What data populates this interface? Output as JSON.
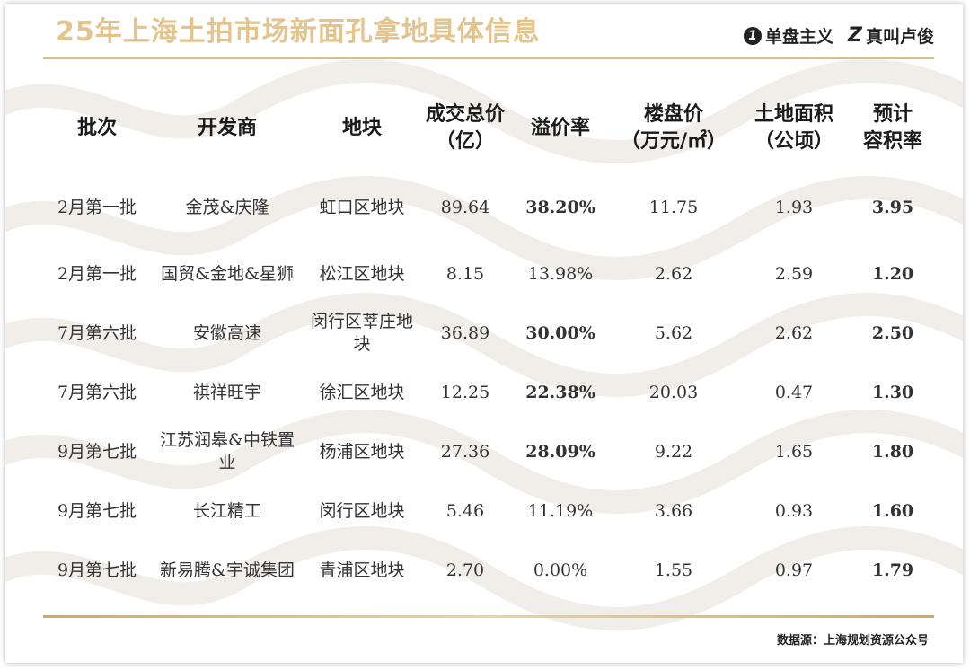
{
  "header": {
    "title": "25年上海土拍市场新面孔拿地具体信息",
    "brand_1": "单盘主义",
    "brand_1_logo": "1",
    "brand_2": "真叫卢俊",
    "brand_2_logo": "Z"
  },
  "table": {
    "columns": [
      {
        "line1": "批次",
        "line2": ""
      },
      {
        "line1": "开发商",
        "line2": ""
      },
      {
        "line1": "地块",
        "line2": ""
      },
      {
        "line1": "成交总价",
        "line2": "（亿）"
      },
      {
        "line1": "溢价率",
        "line2": ""
      },
      {
        "line1": "楼盘价",
        "line2": "（万元/㎡）"
      },
      {
        "line1": "土地面积",
        "line2": "（公顷）"
      },
      {
        "line1": "预计",
        "line2": "容积率"
      }
    ],
    "rows": [
      {
        "batch": "2月第一批",
        "developer": "金茂&庆隆",
        "plot": "虹口区地块",
        "price": "89.64",
        "premium": "38.20%",
        "premium_highlight": true,
        "house_price": "11.75",
        "area": "1.93",
        "far": "3.95",
        "far_color": "black"
      },
      {
        "batch": "2月第一批",
        "developer": "国贸&金地&星狮",
        "plot": "松江区地块",
        "price": "8.15",
        "premium": "13.98%",
        "premium_highlight": false,
        "house_price": "2.62",
        "area": "2.59",
        "far": "1.20",
        "far_color": "red"
      },
      {
        "batch": "7月第六批",
        "developer": "安徽高速",
        "plot": "闵行区莘庄地块",
        "price": "36.89",
        "premium": "30.00%",
        "premium_highlight": true,
        "house_price": "5.62",
        "area": "2.62",
        "far": "2.50",
        "far_color": "red"
      },
      {
        "batch": "7月第六批",
        "developer": "祺祥旺宇",
        "plot": "徐汇区地块",
        "price": "12.25",
        "premium": "22.38%",
        "premium_highlight": true,
        "house_price": "20.03",
        "area": "0.47",
        "far": "1.30",
        "far_color": "red"
      },
      {
        "batch": "9月第七批",
        "developer": "江苏润皋&中铁置业",
        "plot": "杨浦区地块",
        "price": "27.36",
        "premium": "28.09%",
        "premium_highlight": true,
        "house_price": "9.22",
        "area": "1.65",
        "far": "1.80",
        "far_color": "red"
      },
      {
        "batch": "9月第七批",
        "developer": "长江精工",
        "plot": "闵行区地块",
        "price": "5.46",
        "premium": "11.19%",
        "premium_highlight": false,
        "house_price": "3.66",
        "area": "0.93",
        "far": "1.60",
        "far_color": "red"
      },
      {
        "batch": "9月第七批",
        "developer": "新易腾&宇诚集团",
        "plot": "青浦区地块",
        "price": "2.70",
        "premium": "0.00%",
        "premium_highlight": false,
        "house_price": "1.55",
        "area": "0.97",
        "far": "1.79",
        "far_color": "red"
      }
    ]
  },
  "footer": {
    "source": "数据源：上海规划资源公众号"
  },
  "colors": {
    "title": "#e2c48c",
    "rule": "#d9bf8a",
    "highlight_red": "#e8232b",
    "background_pattern": "#f3f0ec"
  }
}
